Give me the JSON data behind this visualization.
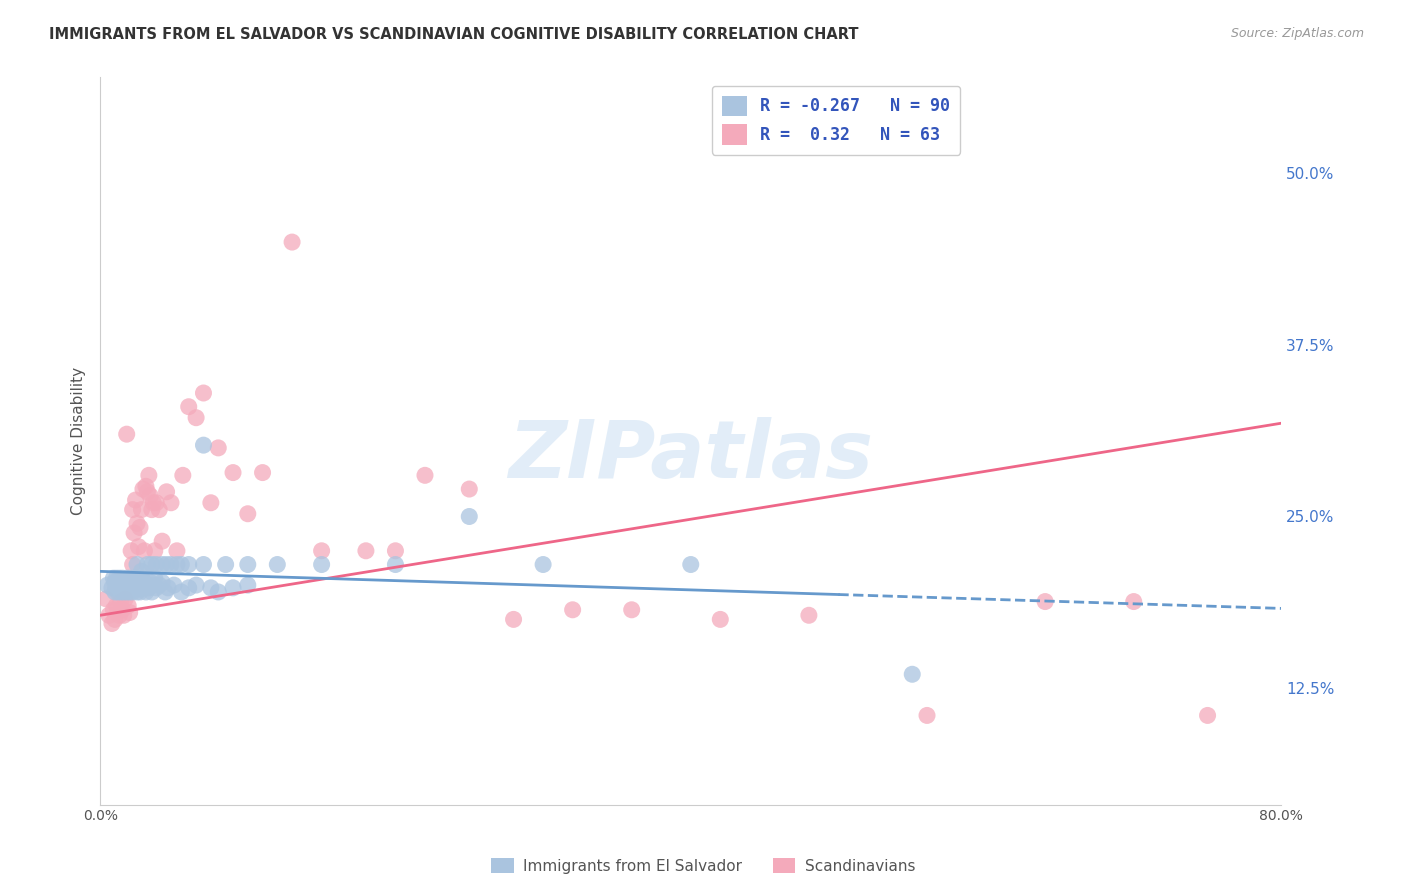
{
  "title": "IMMIGRANTS FROM EL SALVADOR VS SCANDINAVIAN COGNITIVE DISABILITY CORRELATION CHART",
  "source": "Source: ZipAtlas.com",
  "ylabel": "Cognitive Disability",
  "right_yticks": [
    "50.0%",
    "37.5%",
    "25.0%",
    "12.5%"
  ],
  "right_ytick_vals": [
    0.5,
    0.375,
    0.25,
    0.125
  ],
  "xlim": [
    0.0,
    0.8
  ],
  "ylim": [
    0.04,
    0.57
  ],
  "series1_label": "Immigrants from El Salvador",
  "series1_color": "#aac4df",
  "series1_R": -0.267,
  "series1_N": 90,
  "series1_trend_color": "#6699cc",
  "series2_label": "Scandinavians",
  "series2_color": "#f4aabb",
  "series2_R": 0.32,
  "series2_N": 63,
  "series2_trend_color": "#ee6688",
  "watermark": "ZIPatlas",
  "background_color": "#ffffff",
  "grid_color": "#cccccc",
  "legend_text_color": "#3355bb",
  "blue_scatter_x": [
    0.005,
    0.008,
    0.009,
    0.01,
    0.01,
    0.011,
    0.011,
    0.012,
    0.012,
    0.013,
    0.013,
    0.013,
    0.014,
    0.014,
    0.015,
    0.015,
    0.015,
    0.016,
    0.016,
    0.017,
    0.017,
    0.018,
    0.018,
    0.018,
    0.019,
    0.019,
    0.02,
    0.02,
    0.02,
    0.021,
    0.021,
    0.022,
    0.022,
    0.023,
    0.023,
    0.024,
    0.024,
    0.025,
    0.025,
    0.026,
    0.026,
    0.027,
    0.027,
    0.028,
    0.028,
    0.029,
    0.03,
    0.03,
    0.031,
    0.032,
    0.033,
    0.034,
    0.035,
    0.036,
    0.037,
    0.038,
    0.04,
    0.042,
    0.044,
    0.046,
    0.05,
    0.055,
    0.06,
    0.065,
    0.07,
    0.075,
    0.08,
    0.09,
    0.1,
    0.025,
    0.028,
    0.032,
    0.035,
    0.038,
    0.042,
    0.045,
    0.048,
    0.052,
    0.055,
    0.06,
    0.07,
    0.085,
    0.1,
    0.12,
    0.15,
    0.2,
    0.25,
    0.3,
    0.4,
    0.55
  ],
  "blue_scatter_y": [
    0.2,
    0.198,
    0.205,
    0.195,
    0.202,
    0.198,
    0.205,
    0.2,
    0.195,
    0.202,
    0.198,
    0.205,
    0.2,
    0.195,
    0.198,
    0.202,
    0.205,
    0.2,
    0.195,
    0.202,
    0.198,
    0.2,
    0.195,
    0.205,
    0.198,
    0.202,
    0.2,
    0.195,
    0.205,
    0.198,
    0.202,
    0.2,
    0.195,
    0.198,
    0.205,
    0.2,
    0.202,
    0.195,
    0.205,
    0.198,
    0.202,
    0.2,
    0.195,
    0.198,
    0.205,
    0.2,
    0.198,
    0.202,
    0.195,
    0.2,
    0.198,
    0.202,
    0.195,
    0.2,
    0.205,
    0.198,
    0.2,
    0.202,
    0.195,
    0.198,
    0.2,
    0.195,
    0.198,
    0.2,
    0.302,
    0.198,
    0.195,
    0.198,
    0.2,
    0.215,
    0.21,
    0.215,
    0.215,
    0.215,
    0.215,
    0.215,
    0.215,
    0.215,
    0.215,
    0.215,
    0.215,
    0.215,
    0.215,
    0.215,
    0.215,
    0.215,
    0.25,
    0.215,
    0.215,
    0.135
  ],
  "pink_scatter_x": [
    0.004,
    0.006,
    0.008,
    0.009,
    0.01,
    0.011,
    0.012,
    0.013,
    0.014,
    0.015,
    0.016,
    0.017,
    0.018,
    0.019,
    0.02,
    0.021,
    0.022,
    0.022,
    0.023,
    0.024,
    0.025,
    0.026,
    0.027,
    0.028,
    0.029,
    0.03,
    0.031,
    0.032,
    0.033,
    0.034,
    0.035,
    0.036,
    0.037,
    0.038,
    0.04,
    0.042,
    0.045,
    0.048,
    0.052,
    0.056,
    0.06,
    0.065,
    0.07,
    0.075,
    0.08,
    0.09,
    0.1,
    0.11,
    0.13,
    0.15,
    0.18,
    0.2,
    0.22,
    0.25,
    0.28,
    0.32,
    0.36,
    0.42,
    0.48,
    0.56,
    0.64,
    0.7,
    0.75
  ],
  "pink_scatter_y": [
    0.19,
    0.178,
    0.172,
    0.182,
    0.175,
    0.185,
    0.182,
    0.178,
    0.188,
    0.182,
    0.178,
    0.19,
    0.31,
    0.185,
    0.18,
    0.225,
    0.215,
    0.255,
    0.238,
    0.262,
    0.245,
    0.228,
    0.242,
    0.255,
    0.27,
    0.225,
    0.272,
    0.268,
    0.28,
    0.265,
    0.255,
    0.26,
    0.225,
    0.26,
    0.255,
    0.232,
    0.268,
    0.26,
    0.225,
    0.28,
    0.33,
    0.322,
    0.34,
    0.26,
    0.3,
    0.282,
    0.252,
    0.282,
    0.45,
    0.225,
    0.225,
    0.225,
    0.28,
    0.27,
    0.175,
    0.182,
    0.182,
    0.175,
    0.178,
    0.105,
    0.188,
    0.188,
    0.105
  ],
  "blue_trend_start_x": 0.0,
  "blue_trend_solid_end_x": 0.5,
  "blue_trend_dash_end_x": 0.8,
  "blue_trend_start_y": 0.21,
  "blue_trend_end_y": 0.183,
  "pink_trend_start_x": 0.0,
  "pink_trend_end_x": 0.8,
  "pink_trend_start_y": 0.178,
  "pink_trend_end_y": 0.318
}
